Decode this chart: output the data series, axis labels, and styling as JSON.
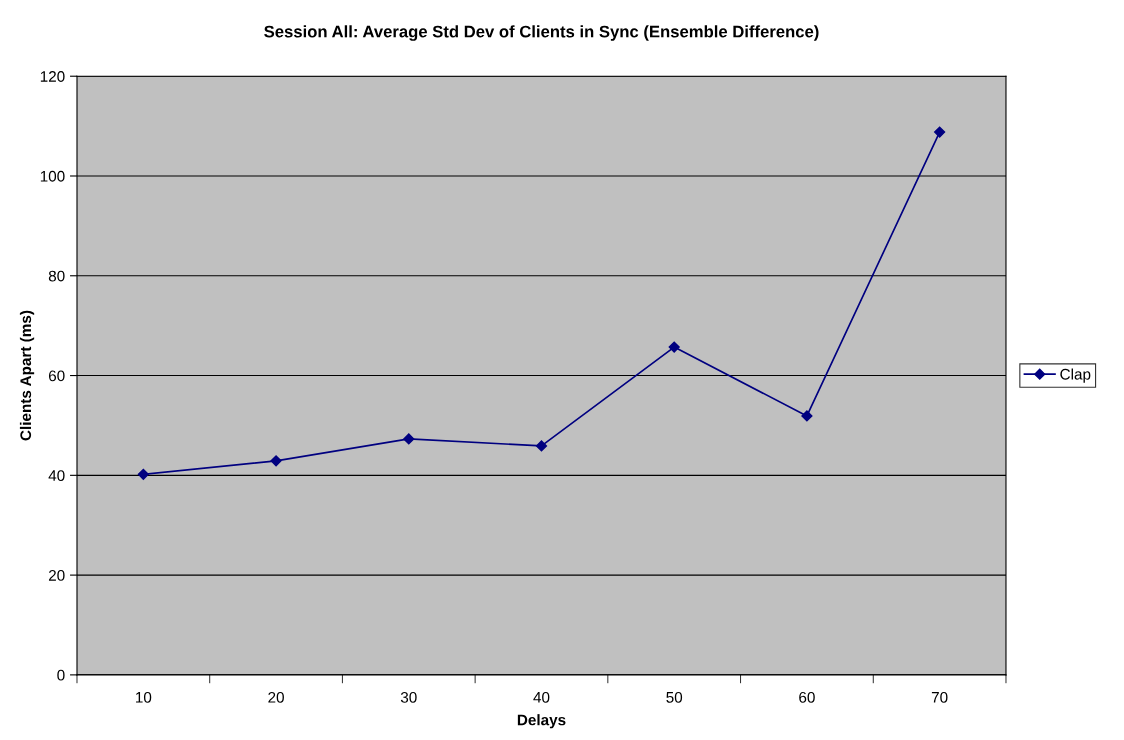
{
  "chart_data": {
    "type": "line",
    "title": "Session All: Average Std Dev of Clients in Sync (Ensemble Difference)",
    "xlabel": "Delays",
    "ylabel": "Clients Apart (ms)",
    "categories": [
      "10",
      "20",
      "30",
      "40",
      "50",
      "60",
      "70"
    ],
    "series": [
      {
        "name": "Clap",
        "color": "#000080",
        "values": [
          40.2,
          42.9,
          47.3,
          45.9,
          65.7,
          51.9,
          108.8
        ]
      }
    ],
    "ylim": [
      0,
      120
    ],
    "yticks": [
      0,
      20,
      40,
      60,
      80,
      100,
      120
    ],
    "grid": "y",
    "legend": "right",
    "marker": "diamond",
    "line_style": "solid"
  }
}
